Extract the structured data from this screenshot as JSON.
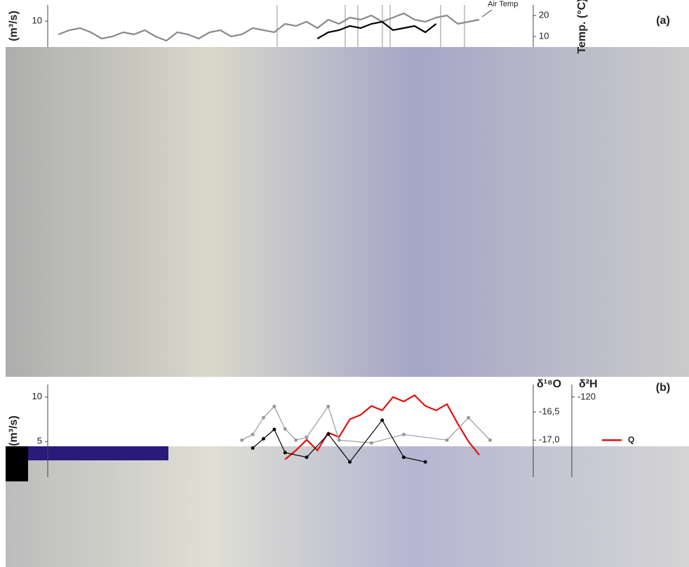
{
  "chart_data": [
    {
      "type": "line",
      "panel_label": "(a)",
      "ylabel": "(m³/s)",
      "y2label": "Temp. (°C)",
      "xlim": [
        0,
        45
      ],
      "ylim": [
        7.6,
        11.5
      ],
      "yticks": [
        10
      ],
      "y2lim": [
        5,
        25
      ],
      "y2ticks": [
        10,
        20
      ],
      "legend": "none",
      "series": [
        {
          "name": "Air Temp",
          "color": "#888888",
          "axis": "y2",
          "annotate": true,
          "x": [
            1,
            2,
            3,
            4,
            5,
            6,
            7,
            8,
            9,
            10,
            11,
            12,
            13,
            14,
            15,
            16,
            17,
            18,
            19,
            20,
            21,
            22,
            23,
            24,
            25,
            26,
            27,
            28,
            29,
            30,
            31,
            32,
            33,
            34,
            35,
            36,
            37,
            38,
            39,
            40
          ],
          "values": [
            11,
            13,
            14,
            12,
            9,
            10,
            12,
            11,
            13,
            10,
            8,
            12,
            11,
            9,
            12,
            13,
            10,
            11,
            14,
            13,
            12,
            16,
            15,
            17,
            14,
            18,
            16,
            19,
            18,
            20,
            17,
            19,
            21,
            18,
            17,
            19,
            20,
            16,
            17,
            18
          ]
        },
        {
          "color": "#000000",
          "axis": "y2",
          "x": [
            25,
            26,
            27,
            28,
            29,
            30,
            31,
            32,
            33,
            34,
            35,
            36
          ],
          "values": [
            9,
            12,
            13,
            15,
            14,
            16,
            17,
            13,
            14,
            15,
            12,
            16
          ]
        }
      ]
    },
    {
      "type": "line",
      "panel_label": "(b)",
      "ylabel": "(m³/s)",
      "y2label": "δ¹⁸O",
      "y3label": "δ²H",
      "xlim": [
        0,
        45
      ],
      "ylim": [
        1,
        11.4
      ],
      "yticks": [
        5,
        10
      ],
      "y2lim": [
        -17.66,
        -16.01
      ],
      "y2ticks": [
        {
          "value": -17.0,
          "label": "-17,0"
        },
        {
          "value": -16.5,
          "label": "-16,5"
        }
      ],
      "y3lim": [
        -137.3,
        -117.3
      ],
      "y3ticks": [
        -120
      ],
      "legend": "right",
      "series": [
        {
          "name": "Q",
          "color": "#e01010",
          "x": [
            22,
            23,
            24,
            25,
            26,
            27,
            28,
            29,
            30,
            31,
            32,
            33,
            34,
            35,
            36,
            37,
            38,
            39,
            40
          ],
          "values": [
            3,
            4,
            5.2,
            4,
            6,
            5.5,
            7.5,
            8,
            9,
            8.5,
            10,
            9.5,
            10.2,
            9,
            8.5,
            9.2,
            7,
            5,
            3.5
          ]
        },
        {
          "color": "#999999",
          "axis": "y2",
          "marker": "circle",
          "x": [
            18,
            19,
            20,
            21,
            22,
            23,
            24,
            26,
            27,
            30,
            33,
            37,
            39,
            41
          ],
          "values": [
            -17.0,
            -16.9,
            -16.6,
            -16.4,
            -16.8,
            -17.0,
            -16.95,
            -16.4,
            -17.0,
            -17.05,
            -16.9,
            -17.0,
            -16.6,
            -17.0
          ]
        },
        {
          "color": "#000000",
          "axis": "y3",
          "marker": "circle",
          "x": [
            19,
            20,
            21,
            22,
            24,
            26,
            28,
            31,
            33,
            35
          ],
          "values": [
            -131,
            -129,
            -127,
            -132,
            -133,
            -128,
            -134,
            -125,
            -133,
            -134
          ]
        }
      ]
    }
  ]
}
